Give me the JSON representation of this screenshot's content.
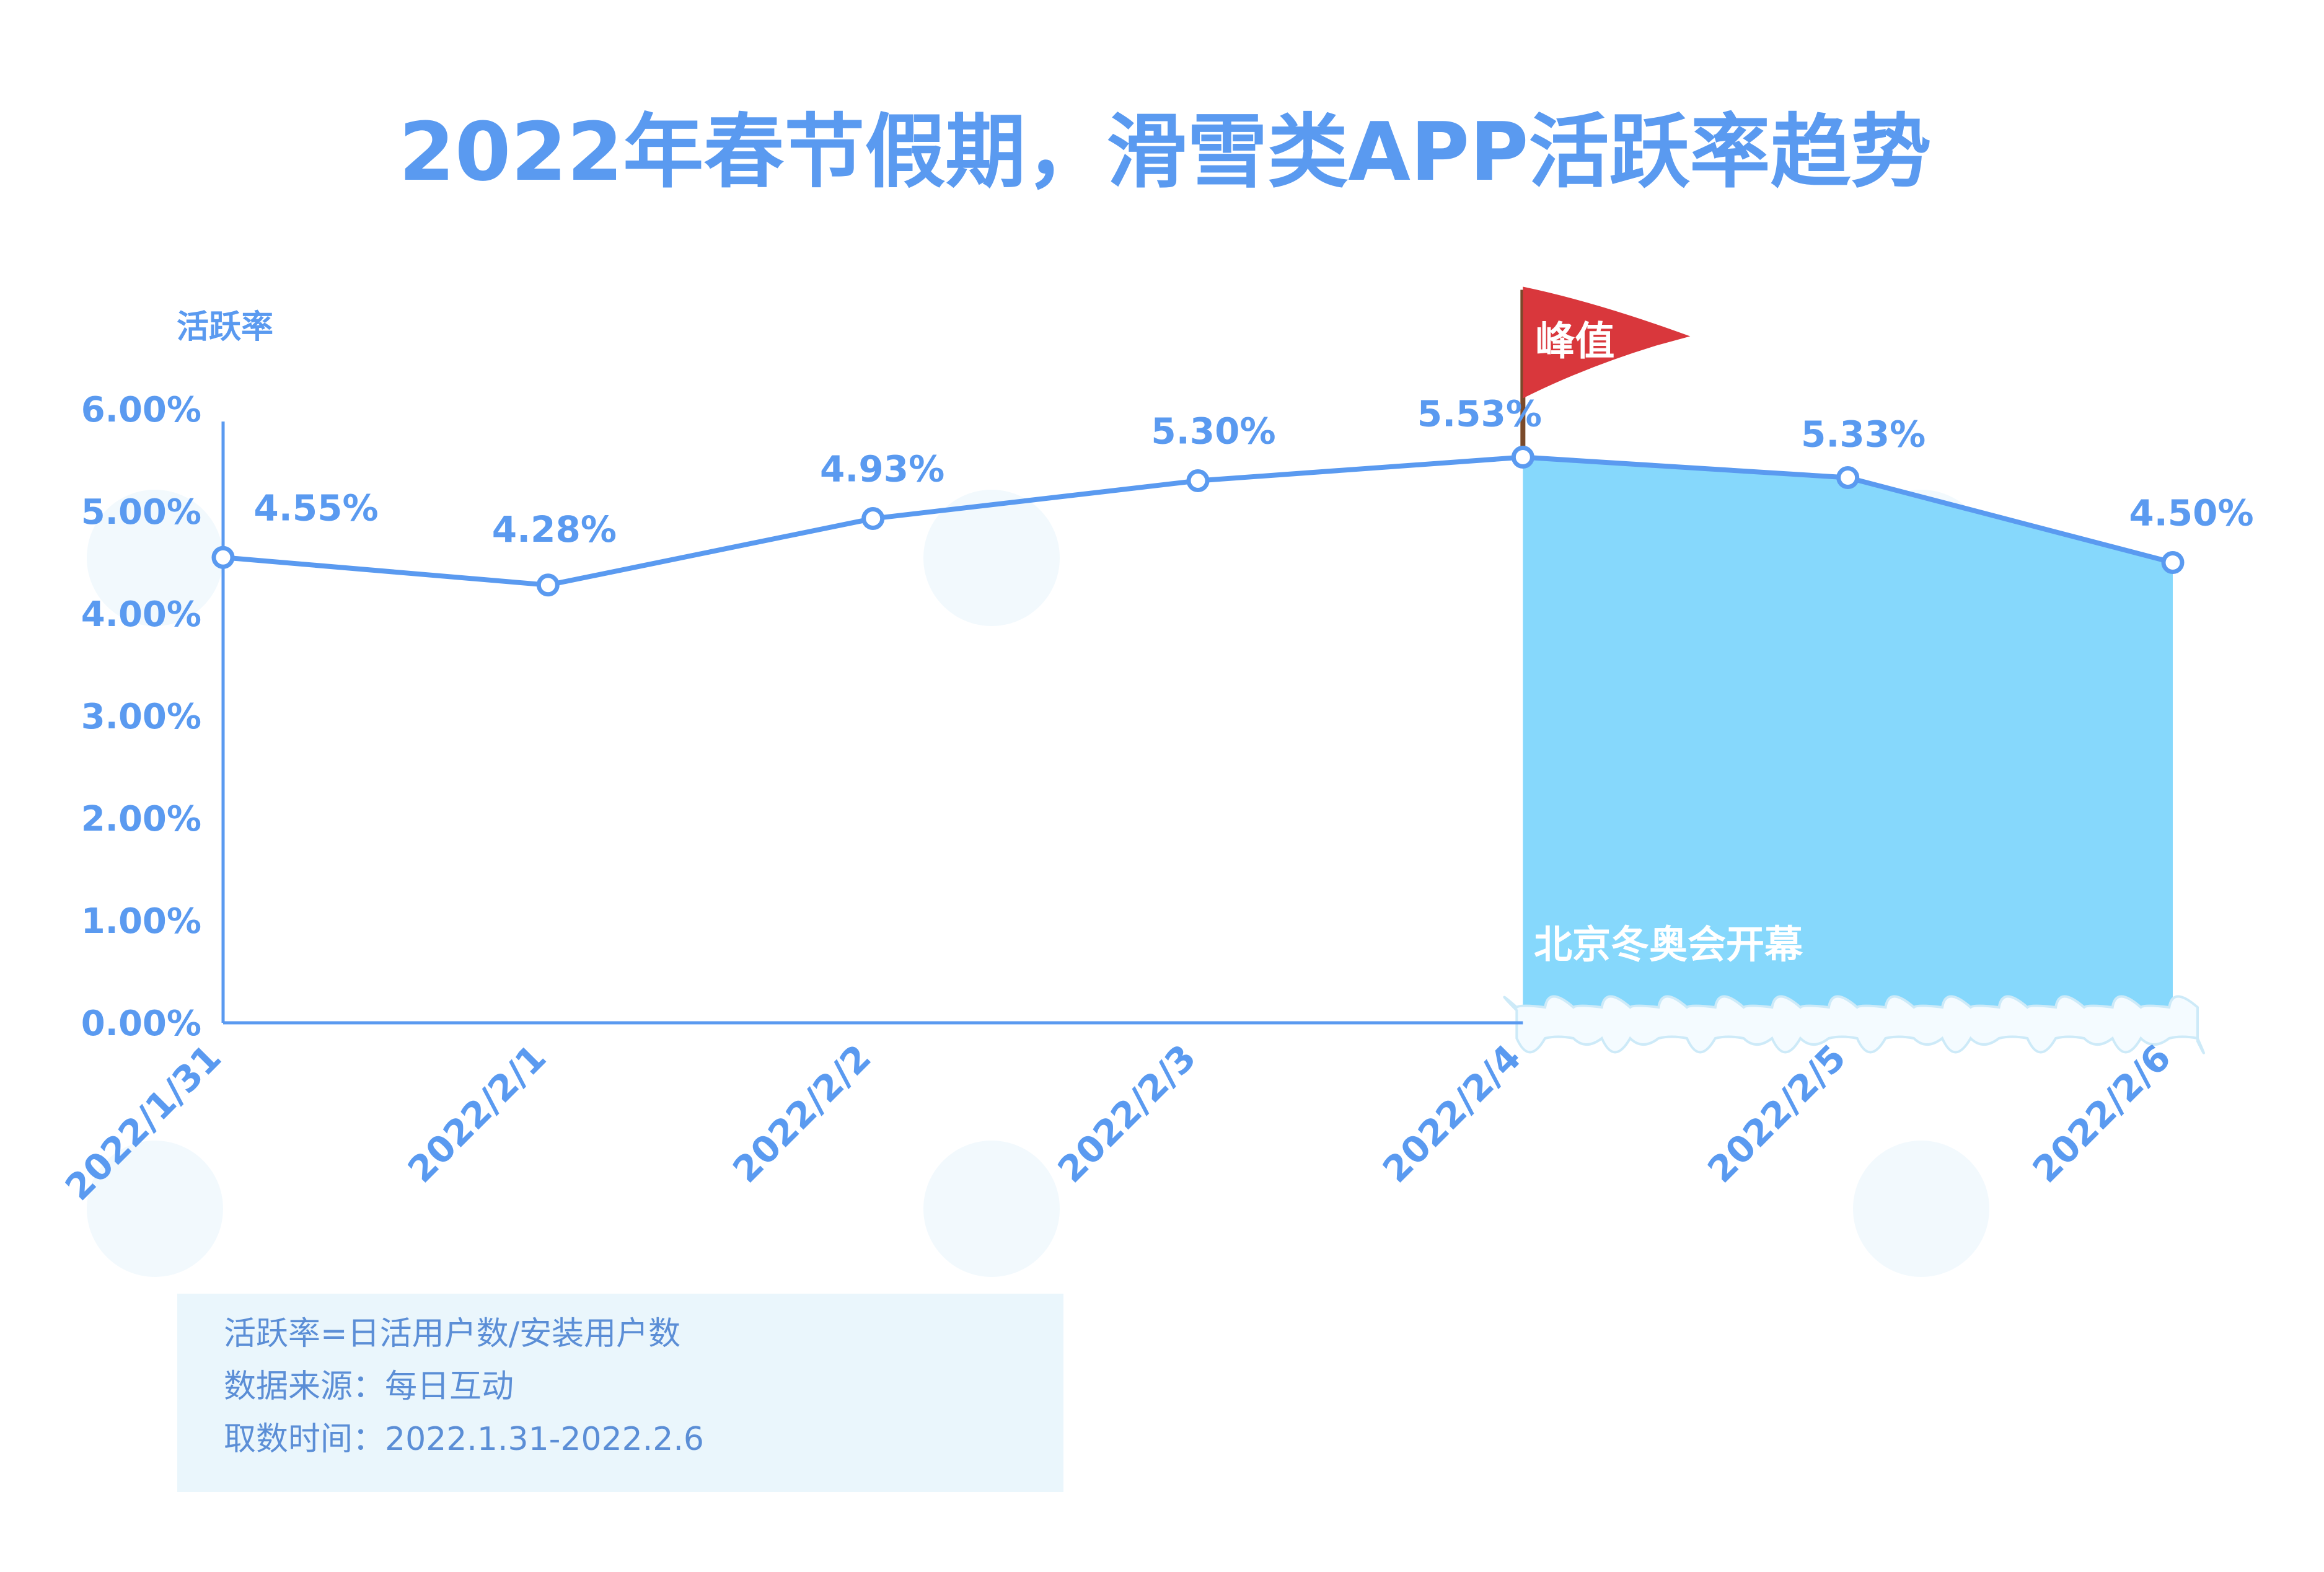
{
  "chart_data": {
    "type": "line",
    "title": "2022年春节假期，滑雪类APP活跃率趋势",
    "ylabel": "活跃率",
    "ylim": [
      0,
      6
    ],
    "yticks": [
      "0.00%",
      "1.00%",
      "2.00%",
      "3.00%",
      "4.00%",
      "5.00%",
      "6.00%"
    ],
    "categories": [
      "2022/1/31",
      "2022/2/1",
      "2022/2/2",
      "2022/2/3",
      "2022/2/4",
      "2022/2/5",
      "2022/2/6"
    ],
    "values": [
      4.55,
      4.28,
      4.93,
      5.3,
      5.53,
      5.33,
      4.5
    ],
    "value_labels": [
      "4.55%",
      "4.28%",
      "4.93%",
      "5.30%",
      "5.53%",
      "5.33%",
      "4.50%"
    ],
    "peak_label": "峰值",
    "shaded_region_start": "2022/2/4",
    "shaded_region_label": "北京冬奥会开幕",
    "grid": false,
    "colors": {
      "line": "#5a9af0",
      "text": "#5a9af0",
      "fill": "#86d8fc",
      "flag": "#d9373c"
    }
  },
  "notes": [
    "活跃率=日活用户数/安装用户数",
    "数据来源：每日互动",
    "取数时间：2022.1.31-2022.2.6"
  ]
}
